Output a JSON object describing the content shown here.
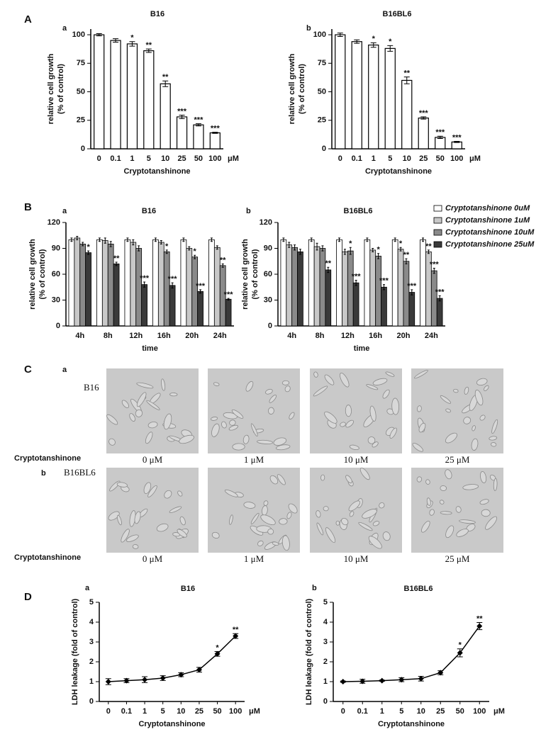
{
  "figure_labels": [
    "A",
    "B",
    "C",
    "D"
  ],
  "chart_data": [
    {
      "type": "bar",
      "panel": "a",
      "title": "B16",
      "categories": [
        "0",
        "0.1",
        "1",
        "5",
        "10",
        "25",
        "50",
        "100"
      ],
      "x_unit": "μM",
      "xlabel": "Cryptotanshinone",
      "ylabel": [
        "relative cell growth",
        "(% of control)"
      ],
      "ylim": [
        0,
        105
      ],
      "yticks": [
        0,
        25,
        50,
        75,
        100
      ],
      "color": "#ffffff",
      "values": [
        100,
        95,
        92,
        86,
        57,
        28,
        21,
        14
      ],
      "errors": [
        1,
        1.5,
        2,
        1.5,
        2.5,
        1.5,
        1,
        0.5
      ],
      "annotations": [
        null,
        null,
        "*",
        "**",
        "**",
        "***",
        "***",
        "***"
      ]
    },
    {
      "type": "bar",
      "panel": "b",
      "title": "B16BL6",
      "categories": [
        "0",
        "0.1",
        "1",
        "5",
        "10",
        "25",
        "50",
        "100"
      ],
      "x_unit": "μM",
      "xlabel": "Cryptotanshinone",
      "ylabel": [
        "relative cell growth",
        "(% of control)"
      ],
      "ylim": [
        0,
        105
      ],
      "yticks": [
        0,
        25,
        50,
        75,
        100
      ],
      "color": "#ffffff",
      "values": [
        100,
        94,
        91,
        88,
        60,
        27,
        10,
        6
      ],
      "errors": [
        1.5,
        1.5,
        2,
        2.5,
        3,
        1,
        1,
        0.5
      ],
      "annotations": [
        null,
        null,
        "*",
        "*",
        "**",
        "***",
        "***",
        "***"
      ]
    },
    {
      "type": "bar",
      "panel": "a",
      "title": "B16",
      "categories": [
        "4h",
        "8h",
        "12h",
        "16h",
        "20h",
        "24h"
      ],
      "xlabel": "time",
      "ylabel": [
        "relative cell growth",
        "(% of control)"
      ],
      "ylim": [
        0,
        120
      ],
      "yticks": [
        0,
        30,
        60,
        90,
        120
      ],
      "series": [
        {
          "color": "#ffffff",
          "values": [
            100,
            100,
            100,
            100,
            100,
            100
          ],
          "errors": [
            2,
            2,
            2,
            2,
            2,
            2
          ],
          "annotations": [
            null,
            null,
            null,
            null,
            null,
            null
          ]
        },
        {
          "color": "#c8c8c8",
          "values": [
            102,
            99,
            97,
            97,
            90,
            91
          ],
          "errors": [
            2,
            3,
            3,
            2,
            2,
            2
          ],
          "annotations": [
            null,
            null,
            null,
            null,
            null,
            null
          ]
        },
        {
          "color": "#8a8a8a",
          "values": [
            95,
            95,
            90,
            86,
            80,
            70
          ],
          "errors": [
            2,
            3,
            3,
            2,
            2,
            2
          ],
          "annotations": [
            null,
            null,
            null,
            "*",
            "*",
            "**"
          ]
        },
        {
          "color": "#3a3a3a",
          "values": [
            85,
            72,
            48,
            47,
            40,
            31
          ],
          "errors": [
            2,
            2,
            3,
            3,
            2,
            1
          ],
          "annotations": [
            "*",
            "**",
            "***",
            "***",
            "***",
            "***"
          ]
        }
      ]
    },
    {
      "type": "bar",
      "panel": "b",
      "title": "B16BL6",
      "categories": [
        "4h",
        "8h",
        "12h",
        "16h",
        "20h",
        "24h"
      ],
      "xlabel": "time",
      "ylabel": [
        "relative cell growth",
        "(% of control)"
      ],
      "ylim": [
        0,
        120
      ],
      "yticks": [
        0,
        30,
        60,
        90,
        120
      ],
      "legend": "upper right",
      "series": [
        {
          "name": "Cryptotanshinone 0uM",
          "color": "#ffffff",
          "values": [
            100,
            100,
            100,
            100,
            100,
            100
          ],
          "errors": [
            2,
            2,
            2,
            2,
            2,
            2
          ],
          "annotations": [
            null,
            null,
            null,
            null,
            null,
            null
          ]
        },
        {
          "name": "Cryptotanshinone 1uM",
          "color": "#c8c8c8",
          "values": [
            94,
            92,
            86,
            88,
            89,
            86
          ],
          "errors": [
            3,
            4,
            3,
            2,
            2,
            2
          ],
          "annotations": [
            null,
            null,
            null,
            null,
            "*",
            "**"
          ]
        },
        {
          "name": "Cryptotanshinone 10uM",
          "color": "#8a8a8a",
          "values": [
            91,
            90,
            87,
            81,
            75,
            64
          ],
          "errors": [
            3,
            3,
            4,
            3,
            3,
            3
          ],
          "annotations": [
            null,
            null,
            "*",
            "*",
            "**",
            "***"
          ]
        },
        {
          "name": "Cryptotanshinone 25uM",
          "color": "#3a3a3a",
          "values": [
            86,
            65,
            50,
            45,
            39,
            32
          ],
          "errors": [
            3,
            3,
            3,
            3,
            3,
            3
          ],
          "annotations": [
            null,
            "**",
            "***",
            "***",
            "***",
            "***"
          ]
        }
      ]
    },
    {
      "type": "line",
      "panel": "a",
      "title": "B16",
      "categories": [
        "0",
        "0.1",
        "1",
        "5",
        "10",
        "25",
        "50",
        "100"
      ],
      "x_unit": "μM",
      "xlabel": "Cryptotanshinone",
      "ylabel": "LDH leakage (fold of control)",
      "ylim": [
        0,
        5
      ],
      "yticks": [
        0,
        1,
        2,
        3,
        4,
        5
      ],
      "color": "#000000",
      "values": [
        1.0,
        1.05,
        1.1,
        1.18,
        1.35,
        1.6,
        2.4,
        3.3
      ],
      "errors": [
        0.15,
        0.1,
        0.15,
        0.12,
        0.1,
        0.12,
        0.12,
        0.12
      ],
      "annotations": [
        null,
        null,
        null,
        null,
        null,
        null,
        "*",
        "**"
      ]
    },
    {
      "type": "line",
      "panel": "b",
      "title": "B16BL6",
      "categories": [
        "0",
        "0.1",
        "1",
        "5",
        "10",
        "25",
        "50",
        "100"
      ],
      "x_unit": "μM",
      "xlabel": "Cryptotanshinone",
      "ylabel": "LDH leakage (fold of control)",
      "ylim": [
        0,
        5
      ],
      "yticks": [
        0,
        1,
        2,
        3,
        4,
        5
      ],
      "color": "#000000",
      "values": [
        1.0,
        1.02,
        1.05,
        1.1,
        1.15,
        1.45,
        2.45,
        3.8
      ],
      "errors": [
        0.03,
        0.1,
        0.03,
        0.1,
        0.12,
        0.1,
        0.2,
        0.18
      ],
      "annotations": [
        null,
        null,
        null,
        null,
        null,
        null,
        "*",
        "**"
      ]
    }
  ],
  "micrographs": {
    "rows": [
      {
        "panel": "a",
        "cell_line": "B16",
        "treatment_label": "Cryptotanshinone",
        "doses": [
          "0 μM",
          "1 μM",
          "10 μM",
          "25 μM"
        ]
      },
      {
        "panel": "b",
        "cell_line": "B16BL6",
        "treatment_label": "Cryptotanshinone",
        "doses": [
          "0 μM",
          "1 μM",
          "10 μM",
          "25 μM"
        ]
      }
    ]
  }
}
